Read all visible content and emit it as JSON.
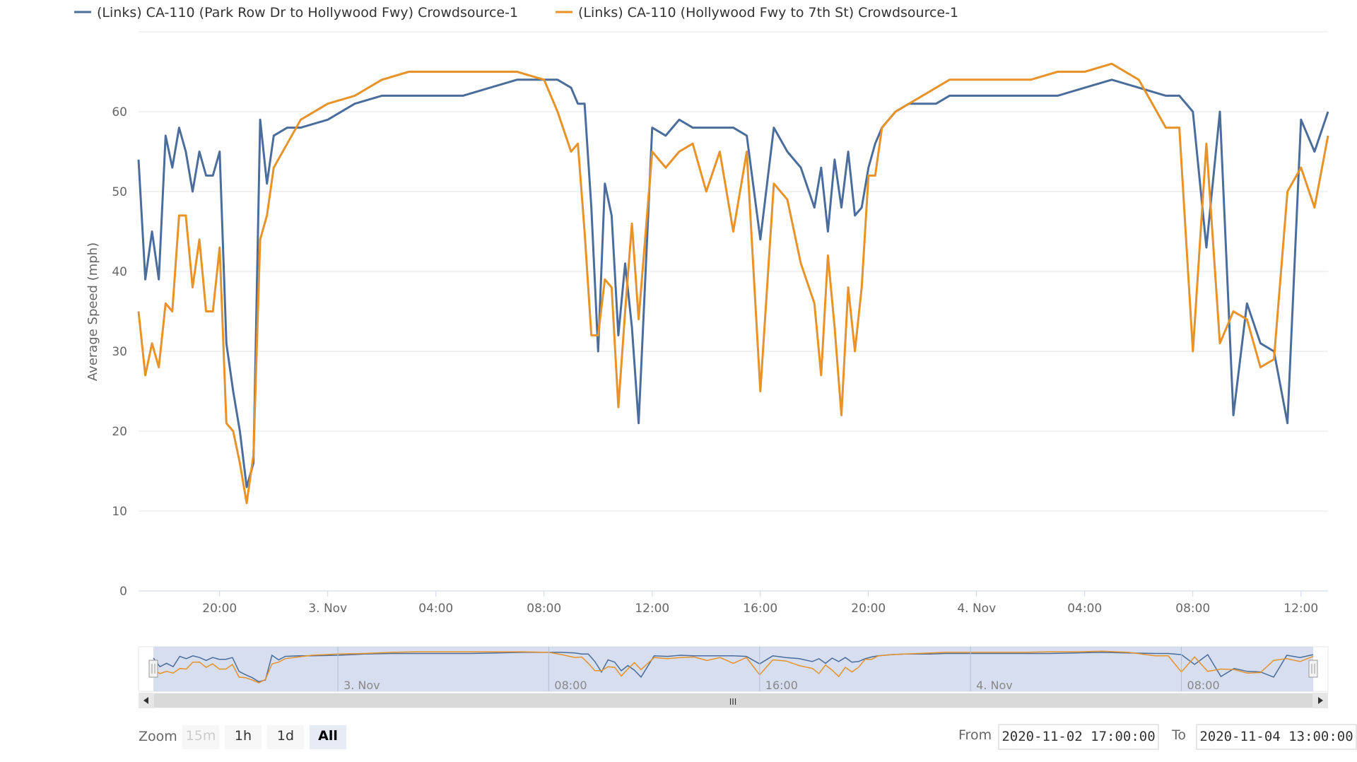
{
  "colors": {
    "series1": "#4a6d9c",
    "series2": "#e8922a",
    "grid": "#e6e6e6",
    "navigator_mask": "#ccd6eb",
    "scrollbar": "#d9d9d9"
  },
  "zoom": {
    "label": "Zoom",
    "buttons": [
      {
        "label": "15m",
        "state": "disabled"
      },
      {
        "label": "1h",
        "state": "normal"
      },
      {
        "label": "1d",
        "state": "normal"
      },
      {
        "label": "All",
        "state": "active"
      }
    ]
  },
  "range": {
    "from_label": "From",
    "from_value": "2020-11-02 17:00:00",
    "to_label": "To",
    "to_value": "2020-11-04 13:00:00"
  },
  "navigator": {
    "labels": [
      "3. Nov",
      "08:00",
      "16:00",
      "4. Nov",
      "08:00"
    ],
    "scroll_grip": "III"
  },
  "chart_data": {
    "type": "line",
    "x_start": "2020-11-02 17:00",
    "x_end": "2020-11-04 13:00",
    "x_ticks": [
      "20:00",
      "3. Nov",
      "04:00",
      "08:00",
      "12:00",
      "16:00",
      "20:00",
      "4. Nov",
      "04:00",
      "08:00",
      "12:00"
    ],
    "ylabel": "Average Speed (mph)",
    "ylim": [
      0,
      70
    ],
    "y_ticks": [
      0,
      10,
      20,
      30,
      40,
      50,
      60
    ],
    "grid": true,
    "legend_position": "top",
    "series": [
      {
        "name": "(Links) CA-110 (Park Row Dr to Hollywood Fwy) Crowdsource-1",
        "x_hours": [
          0,
          0.25,
          0.5,
          0.75,
          1.0,
          1.25,
          1.5,
          1.75,
          2.0,
          2.25,
          2.5,
          2.75,
          3.0,
          3.25,
          3.5,
          3.75,
          4.0,
          4.25,
          4.5,
          4.75,
          5.0,
          5.5,
          6,
          7,
          8,
          9,
          10,
          11,
          12,
          13,
          14,
          15,
          15.5,
          16,
          16.25,
          16.5,
          16.75,
          17,
          17.25,
          17.5,
          17.75,
          18,
          18.25,
          18.5,
          19,
          19.5,
          20,
          20.5,
          21,
          21.5,
          22,
          22.5,
          23,
          23.5,
          24,
          24.5,
          25,
          25.25,
          25.5,
          25.75,
          26,
          26.25,
          26.5,
          26.75,
          27,
          27.25,
          27.5,
          27.75,
          28,
          28.5,
          29,
          29.5,
          30,
          31,
          32,
          33,
          34,
          35,
          36,
          37,
          38,
          38.5,
          39,
          39.5,
          40,
          40.5,
          41,
          41.5,
          42,
          42.5,
          43,
          43.5,
          44
        ],
        "values": [
          54,
          39,
          45,
          39,
          57,
          53,
          58,
          55,
          50,
          55,
          52,
          52,
          55,
          31,
          25,
          20,
          13,
          16,
          59,
          51,
          57,
          58,
          58,
          59,
          61,
          62,
          62,
          62,
          62,
          63,
          64,
          64,
          64,
          63,
          61,
          61,
          48,
          30,
          51,
          47,
          32,
          41,
          33,
          21,
          58,
          57,
          59,
          58,
          58,
          58,
          58,
          57,
          44,
          58,
          55,
          53,
          48,
          53,
          45,
          54,
          48,
          55,
          47,
          48,
          53,
          56,
          58,
          59,
          60,
          61,
          61,
          61,
          62,
          62,
          62,
          62,
          62,
          63,
          64,
          63,
          62,
          62,
          60,
          43,
          60,
          22,
          36,
          31,
          30,
          21,
          59,
          55,
          60
        ]
      },
      {
        "name": "(Links) CA-110 (Hollywood Fwy to 7th St) Crowdsource-1",
        "x_hours": [
          0,
          0.25,
          0.5,
          0.75,
          1.0,
          1.25,
          1.5,
          1.75,
          2.0,
          2.25,
          2.5,
          2.75,
          3.0,
          3.25,
          3.5,
          3.75,
          4.0,
          4.25,
          4.5,
          4.75,
          5.0,
          5.5,
          6,
          7,
          8,
          9,
          10,
          11,
          12,
          13,
          14,
          15,
          15.5,
          16,
          16.25,
          16.5,
          16.75,
          17,
          17.25,
          17.5,
          17.75,
          18,
          18.25,
          18.5,
          19,
          19.5,
          20,
          20.5,
          21,
          21.5,
          22,
          22.5,
          23,
          23.5,
          24,
          24.5,
          25,
          25.25,
          25.5,
          25.75,
          26,
          26.25,
          26.5,
          26.75,
          27,
          27.25,
          27.5,
          27.75,
          28,
          28.5,
          29,
          29.5,
          30,
          31,
          32,
          33,
          34,
          35,
          36,
          37,
          38,
          38.5,
          39,
          39.5,
          40,
          40.5,
          41,
          41.5,
          42,
          42.5,
          43,
          43.5,
          44
        ],
        "values": [
          35,
          27,
          31,
          28,
          36,
          35,
          47,
          47,
          38,
          44,
          35,
          35,
          43,
          21,
          20,
          16,
          11,
          17,
          44,
          47,
          53,
          56,
          59,
          61,
          62,
          64,
          65,
          65,
          65,
          65,
          65,
          64,
          60,
          55,
          56,
          45,
          32,
          32,
          39,
          38,
          23,
          35,
          46,
          34,
          55,
          53,
          55,
          56,
          50,
          55,
          45,
          55,
          25,
          51,
          49,
          41,
          36,
          27,
          42,
          33,
          22,
          38,
          30,
          38,
          52,
          52,
          58,
          59,
          60,
          61,
          62,
          63,
          64,
          64,
          64,
          64,
          65,
          65,
          66,
          64,
          58,
          58,
          30,
          56,
          31,
          35,
          34,
          28,
          29,
          50,
          53,
          48,
          57
        ]
      }
    ]
  }
}
